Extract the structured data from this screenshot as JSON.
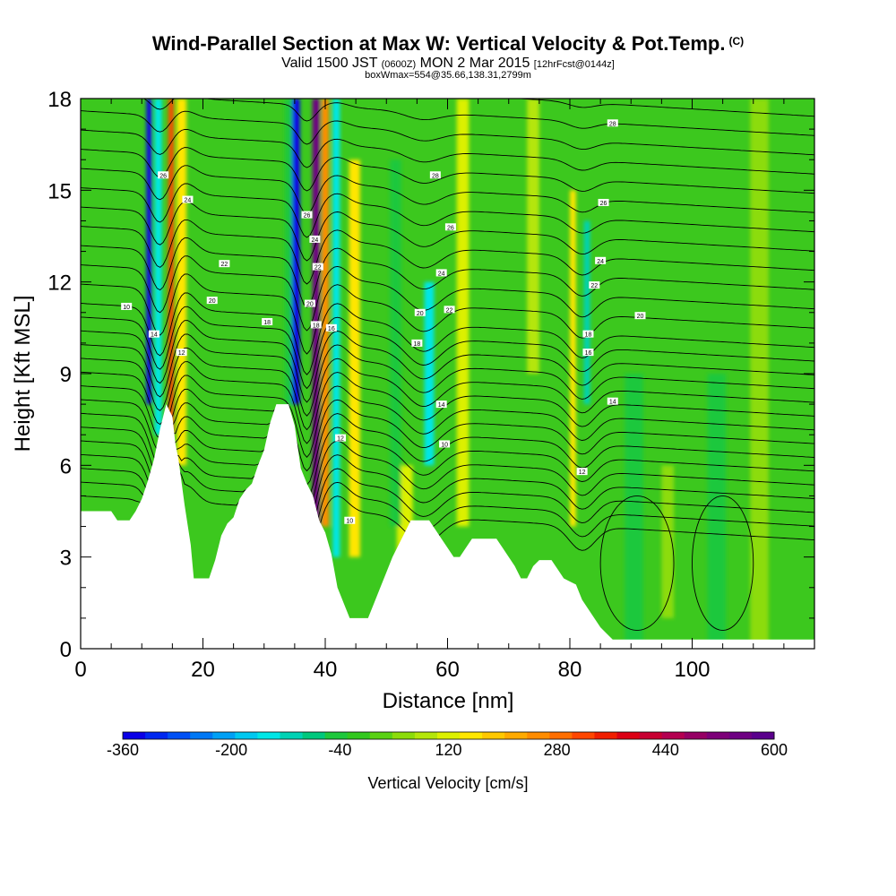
{
  "header": {
    "title": "Wind-Parallel Section at Max W: Vertical Velocity & Pot.Temp.",
    "copyright": "(C)",
    "valid_prefix": "Valid 1500 JST",
    "valid_utc": "(0600Z)",
    "valid_date": "MON 2 Mar 2015",
    "forecast": "[12hrFcst@0144z]",
    "boxwmax": "boxWmax=554@35.66,138.31,2799m"
  },
  "chart_data": {
    "type": "heatmap",
    "title": "Wind-Parallel Section at Max W: Vertical Velocity & Pot.Temp.",
    "xlabel": "Distance [nm]",
    "ylabel": "Height [Kft MSL]",
    "xlim": [
      0,
      120
    ],
    "ylim": [
      0,
      18
    ],
    "x_ticks": [
      0,
      20,
      40,
      60,
      80,
      100
    ],
    "y_ticks": [
      0,
      3,
      6,
      9,
      12,
      15,
      18
    ],
    "colorbar": {
      "label": "Vertical Velocity [cm/s]",
      "tick_labels": [
        "-360",
        "-200",
        "-40",
        "120",
        "280",
        "440",
        "600"
      ],
      "min": -360,
      "max": 600,
      "colors": [
        "#0a00e6",
        "#0028f0",
        "#0050f5",
        "#0078f5",
        "#00a0f5",
        "#00c8f0",
        "#00e6e6",
        "#00d2b4",
        "#00c87d",
        "#1ec83c",
        "#32c81e",
        "#5ad214",
        "#8cdc0a",
        "#b4e60a",
        "#dcf000",
        "#ffe600",
        "#ffc800",
        "#ffaa00",
        "#ff8c00",
        "#ff6e00",
        "#ff4600",
        "#f01e00",
        "#dc0014",
        "#c80032",
        "#b40050",
        "#960064",
        "#7d0078",
        "#6e0082",
        "#5a008c"
      ]
    },
    "terrain_profile": [
      [
        0,
        4.5
      ],
      [
        5,
        4.5
      ],
      [
        6,
        4.2
      ],
      [
        8,
        4.2
      ],
      [
        9,
        4.5
      ],
      [
        10,
        4.9
      ],
      [
        11,
        5.5
      ],
      [
        12,
        6.2
      ],
      [
        13,
        7.2
      ],
      [
        14,
        8.0
      ],
      [
        15,
        7.6
      ],
      [
        15.5,
        6.7
      ],
      [
        16,
        6.2
      ],
      [
        17,
        4.7
      ],
      [
        18,
        3.4
      ],
      [
        18.5,
        2.3
      ],
      [
        21,
        2.3
      ],
      [
        22,
        2.9
      ],
      [
        23,
        3.7
      ],
      [
        24,
        4.1
      ],
      [
        25,
        4.3
      ],
      [
        26,
        4.9
      ],
      [
        27,
        5.2
      ],
      [
        28,
        5.4
      ],
      [
        29,
        6.0
      ],
      [
        30,
        6.5
      ],
      [
        31,
        7.4
      ],
      [
        32,
        8.0
      ],
      [
        34,
        8.0
      ],
      [
        35,
        7.3
      ],
      [
        36,
        5.9
      ],
      [
        37,
        5.4
      ],
      [
        38,
        5.0
      ],
      [
        39,
        4.2
      ],
      [
        40,
        3.8
      ],
      [
        41,
        3.1
      ],
      [
        42,
        2.0
      ],
      [
        43,
        1.5
      ],
      [
        44,
        1.0
      ],
      [
        47,
        1.0
      ],
      [
        48,
        1.5
      ],
      [
        49,
        2.0
      ],
      [
        50,
        2.5
      ],
      [
        51,
        3.0
      ],
      [
        52,
        3.4
      ],
      [
        53,
        3.8
      ],
      [
        54,
        4.2
      ],
      [
        57,
        4.2
      ],
      [
        58,
        3.9
      ],
      [
        59,
        3.6
      ],
      [
        60,
        3.3
      ],
      [
        61,
        3.0
      ],
      [
        62,
        3.0
      ],
      [
        63,
        3.3
      ],
      [
        64,
        3.6
      ],
      [
        68,
        3.6
      ],
      [
        69,
        3.3
      ],
      [
        70,
        3.0
      ],
      [
        71,
        2.7
      ],
      [
        72,
        2.3
      ],
      [
        73,
        2.3
      ],
      [
        74,
        2.7
      ],
      [
        75,
        2.9
      ],
      [
        77,
        2.9
      ],
      [
        78,
        2.6
      ],
      [
        79,
        2.3
      ],
      [
        81,
        2.1
      ],
      [
        82,
        1.6
      ],
      [
        83,
        1.3
      ],
      [
        84,
        1.0
      ],
      [
        85,
        0.7
      ],
      [
        86,
        0.5
      ],
      [
        87,
        0.3
      ],
      [
        120,
        0.3
      ]
    ],
    "series": [
      {
        "name": "Vertical Velocity",
        "units": "cm/s",
        "features": [
          {
            "x": 11.2,
            "w": 0.9,
            "v": -340,
            "zlo": 8,
            "zhi": 18
          },
          {
            "x": 12.7,
            "w": 1.2,
            "v": -140,
            "zlo": 7,
            "zhi": 18
          },
          {
            "x": 14.8,
            "w": 0.9,
            "v": 330,
            "zlo": 7,
            "zhi": 18
          },
          {
            "x": 16.5,
            "w": 1.6,
            "v": 140,
            "zlo": 6,
            "zhi": 18
          },
          {
            "x": 35.2,
            "w": 1.3,
            "v": -340,
            "zlo": 8,
            "zhi": 18
          },
          {
            "x": 34.0,
            "w": 1.2,
            "v": -60,
            "zlo": 8,
            "zhi": 18
          },
          {
            "x": 38.5,
            "w": 1.2,
            "v": 560,
            "zlo": 4,
            "zhi": 18
          },
          {
            "x": 40.0,
            "w": 1.2,
            "v": 250,
            "zlo": 4,
            "zhi": 18
          },
          {
            "x": 41.8,
            "w": 1.2,
            "v": -160,
            "zlo": 3,
            "zhi": 18
          },
          {
            "x": 44.8,
            "w": 1.8,
            "v": 140,
            "zlo": 3,
            "zhi": 16
          },
          {
            "x": 53.0,
            "w": 2.6,
            "v": 130,
            "zlo": 2,
            "zhi": 6
          },
          {
            "x": 51.5,
            "w": 1.8,
            "v": -60,
            "zlo": 4,
            "zhi": 16
          },
          {
            "x": 57.0,
            "w": 1.6,
            "v": -160,
            "zlo": 6,
            "zhi": 12
          },
          {
            "x": 62.5,
            "w": 2.0,
            "v": 110,
            "zlo": 4,
            "zhi": 18
          },
          {
            "x": 74.0,
            "w": 2.0,
            "v": 100,
            "zlo": 9,
            "zhi": 18
          },
          {
            "x": 80.5,
            "w": 1.0,
            "v": 150,
            "zlo": 4,
            "zhi": 15
          },
          {
            "x": 82.8,
            "w": 1.0,
            "v": -120,
            "zlo": 8,
            "zhi": 14
          },
          {
            "x": 90.5,
            "w": 3.0,
            "v": -50,
            "zlo": 0,
            "zhi": 9
          },
          {
            "x": 96.0,
            "w": 2.0,
            "v": 70,
            "zlo": 1,
            "zhi": 6
          },
          {
            "x": 104.0,
            "w": 3.0,
            "v": -50,
            "zlo": 0,
            "zhi": 9
          },
          {
            "x": 111.0,
            "w": 3.0,
            "v": 60,
            "zlo": 0,
            "zhi": 18
          }
        ]
      },
      {
        "name": "Potential Temperature",
        "units": "contours",
        "contour_labels": [
          {
            "text": "26",
            "x": 13.5,
            "y": 15.5
          },
          {
            "text": "24",
            "x": 17.5,
            "y": 14.7
          },
          {
            "text": "22",
            "x": 23.5,
            "y": 12.6
          },
          {
            "text": "20",
            "x": 21.5,
            "y": 11.4
          },
          {
            "text": "18",
            "x": 30.5,
            "y": 10.7
          },
          {
            "text": "10",
            "x": 7.5,
            "y": 11.2
          },
          {
            "text": "14",
            "x": 12.0,
            "y": 10.3
          },
          {
            "text": "12",
            "x": 16.5,
            "y": 9.7
          },
          {
            "text": "26",
            "x": 37.0,
            "y": 14.2
          },
          {
            "text": "24",
            "x": 38.3,
            "y": 13.4
          },
          {
            "text": "22",
            "x": 38.8,
            "y": 12.5
          },
          {
            "text": "20",
            "x": 37.5,
            "y": 11.3
          },
          {
            "text": "18",
            "x": 38.5,
            "y": 10.6
          },
          {
            "text": "16",
            "x": 41.0,
            "y": 10.5
          },
          {
            "text": "12",
            "x": 42.5,
            "y": 6.9
          },
          {
            "text": "10",
            "x": 44.0,
            "y": 4.2
          },
          {
            "text": "28",
            "x": 58.0,
            "y": 15.5
          },
          {
            "text": "26",
            "x": 60.5,
            "y": 13.8
          },
          {
            "text": "24",
            "x": 59.0,
            "y": 12.3
          },
          {
            "text": "22",
            "x": 60.3,
            "y": 11.1
          },
          {
            "text": "20",
            "x": 55.5,
            "y": 11.0
          },
          {
            "text": "18",
            "x": 55.0,
            "y": 10.0
          },
          {
            "text": "14",
            "x": 59.0,
            "y": 8.0
          },
          {
            "text": "10",
            "x": 59.5,
            "y": 6.7
          },
          {
            "text": "28",
            "x": 87.0,
            "y": 17.2
          },
          {
            "text": "26",
            "x": 85.5,
            "y": 14.6
          },
          {
            "text": "24",
            "x": 85.0,
            "y": 12.7
          },
          {
            "text": "22",
            "x": 84.0,
            "y": 11.9
          },
          {
            "text": "20",
            "x": 91.5,
            "y": 10.9
          },
          {
            "text": "18",
            "x": 83.0,
            "y": 10.3
          },
          {
            "text": "16",
            "x": 83.0,
            "y": 9.7
          },
          {
            "text": "14",
            "x": 87.0,
            "y": 8.1
          },
          {
            "text": "12",
            "x": 82.0,
            "y": 5.8
          }
        ]
      }
    ]
  }
}
